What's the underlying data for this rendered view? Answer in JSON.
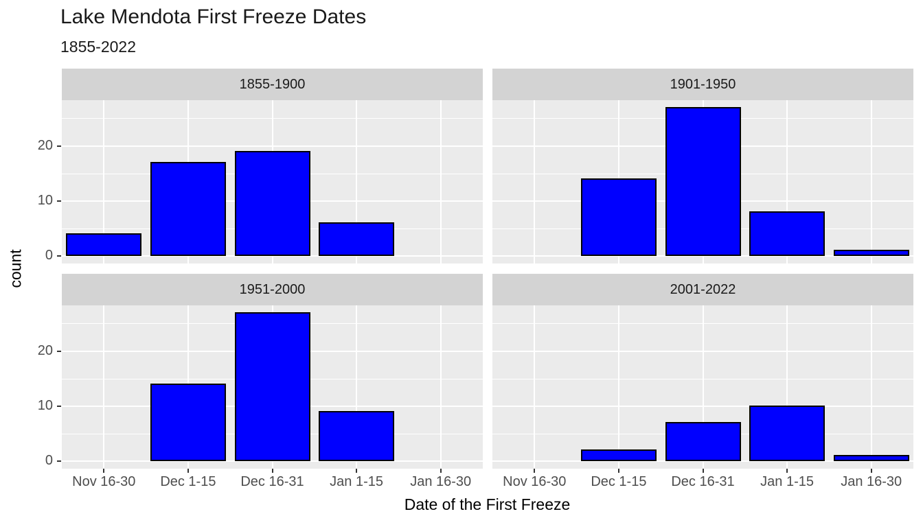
{
  "title": "Lake Mendota First Freeze Dates",
  "subtitle": "1855-2022",
  "chart_data": {
    "type": "bar",
    "title": "Lake Mendota First Freeze Dates",
    "subtitle": "1855-2022",
    "xlabel": "Date of the First Freeze",
    "ylabel": "count",
    "categories": [
      "Nov 16-30",
      "Dec 1-15",
      "Dec 16-31",
      "Jan 1-15",
      "Jan 16-30"
    ],
    "facets": [
      {
        "label": "1855-1900",
        "values": [
          4,
          17,
          19,
          6,
          0
        ]
      },
      {
        "label": "1901-1950",
        "values": [
          0,
          14,
          27,
          8,
          1
        ]
      },
      {
        "label": "1951-2000",
        "values": [
          0,
          14,
          27,
          9,
          0
        ]
      },
      {
        "label": "2001-2022",
        "values": [
          0,
          2,
          7,
          10,
          1
        ]
      }
    ],
    "y_ticks": [
      0,
      10,
      20
    ],
    "y_minor_ticks": [
      5,
      15,
      25
    ],
    "ylim": [
      0,
      28.35
    ],
    "grid": "white major+minor horizontal, major vertical",
    "legend_position": "none",
    "bar_fill": "#0000FF",
    "bar_stroke": "#000000",
    "panel_bg": "#EBEBEB",
    "strip_bg": "#D3D3D3",
    "grid_color": "#FFFFFF",
    "axis_text_color": "#4D4D4D",
    "tick_color": "#333333",
    "title_color": "#191919"
  }
}
